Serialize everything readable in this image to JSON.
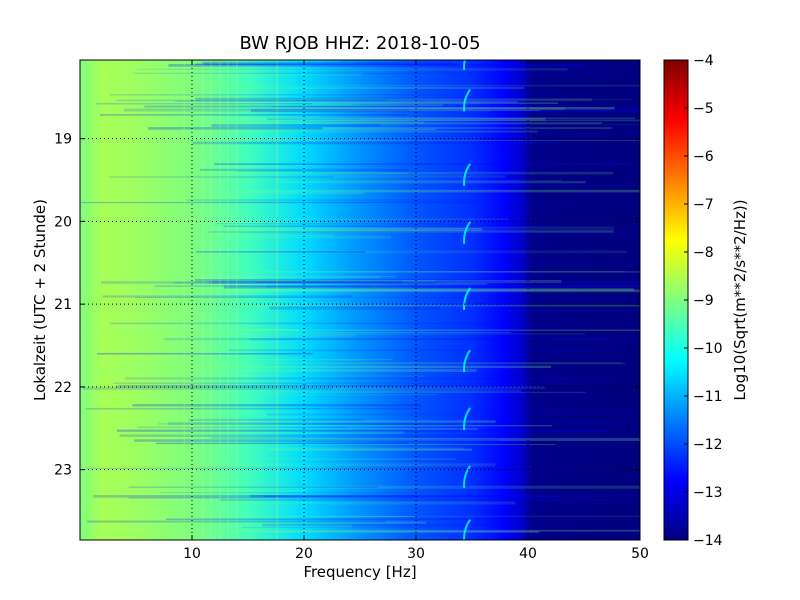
{
  "chart_data": {
    "type": "heatmap",
    "title": "BW RJOB HHZ: 2018-10-05",
    "xlabel": "Frequency [Hz]",
    "ylabel": "Lokalzeit (UTC + 2 Stunde)",
    "xlim": [
      0,
      50
    ],
    "ylim": [
      18.05,
      23.85
    ],
    "y_inverted": true,
    "x_ticks": [
      10,
      20,
      30,
      40,
      50
    ],
    "y_ticks": [
      19,
      20,
      21,
      22,
      23
    ],
    "grid": true,
    "colormap": "jet",
    "colorbar": {
      "label": "Log10(Sqrt(m**2/s**2/Hz))",
      "range": [
        -14,
        -4
      ],
      "ticks": [
        -4,
        -5,
        -6,
        -7,
        -8,
        -9,
        -10,
        -11,
        -12,
        -13,
        -14
      ]
    },
    "approx_profile": {
      "frequency_hz": [
        0,
        2,
        5,
        10,
        15,
        20,
        25,
        30,
        35,
        38,
        39.5,
        40.5,
        50
      ],
      "log10_psd": [
        -9.0,
        -8.6,
        -8.7,
        -9.0,
        -9.6,
        -10.6,
        -11.3,
        -11.9,
        -12.3,
        -12.8,
        -13.3,
        -13.9,
        -14.0
      ]
    },
    "colors": {
      "jet": [
        "#00007f",
        "#0000ff",
        "#007fff",
        "#00ffff",
        "#7fff7f",
        "#ffff00",
        "#ff7f00",
        "#ff0000",
        "#7f0000"
      ]
    }
  }
}
